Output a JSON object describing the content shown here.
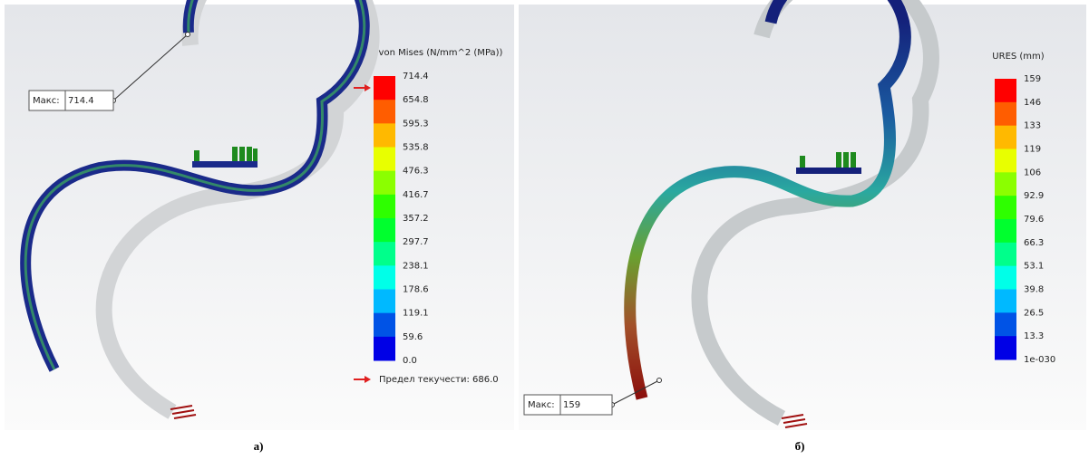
{
  "panels": [
    {
      "legend_title": "von Mises (N/mm^2 (MPa))",
      "legend_labels": [
        "714.4",
        "654.8",
        "595.3",
        "535.8",
        "476.3",
        "416.7",
        "357.2",
        "297.7",
        "238.1",
        "178.6",
        "119.1",
        "59.6",
        "0.0"
      ],
      "max_label": "Макс:",
      "max_value": "714.4",
      "yield_label": "Предел текучести: 686.0",
      "caption": "а)"
    },
    {
      "legend_title": "URES (mm)",
      "legend_labels": [
        "159",
        "146",
        "133",
        "119",
        "106",
        "92.9",
        "79.6",
        "66.3",
        "53.1",
        "39.8",
        "26.5",
        "13.3",
        "1e-030"
      ],
      "max_label": "Макс:",
      "max_value": "159",
      "caption": "б)"
    }
  ]
}
